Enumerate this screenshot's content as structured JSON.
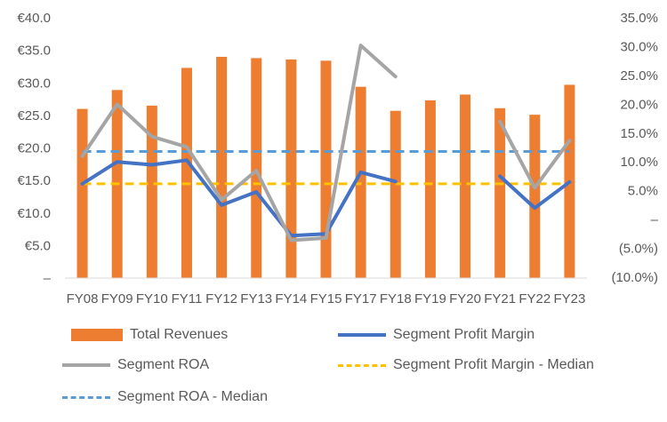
{
  "chart_data": {
    "type": "bar",
    "categories": [
      "FY08",
      "FY09",
      "FY10",
      "FY11",
      "FY12",
      "FY13",
      "FY14",
      "FY15",
      "FY17",
      "FY18",
      "FY19",
      "FY20",
      "FY21",
      "FY22",
      "FY23"
    ],
    "series": [
      {
        "name": "Total Revenues",
        "kind": "bar",
        "axis": "left",
        "color": "#ED7D31",
        "values": [
          26.0,
          28.9,
          26.5,
          32.3,
          34.0,
          33.8,
          33.6,
          33.4,
          29.4,
          25.7,
          27.3,
          28.2,
          26.1,
          25.1,
          29.7
        ]
      },
      {
        "name": "Segment Profit Margin",
        "kind": "line",
        "axis": "right",
        "color": "#4472C4",
        "values": [
          0.062,
          0.1,
          0.095,
          0.103,
          0.025,
          0.048,
          -0.028,
          -0.025,
          0.082,
          0.066,
          null,
          null,
          0.075,
          0.02,
          0.065
        ]
      },
      {
        "name": "Segment ROA",
        "kind": "line",
        "axis": "right",
        "color": "#A5A5A5",
        "values": [
          0.11,
          0.2,
          0.144,
          0.126,
          0.034,
          0.085,
          -0.036,
          -0.032,
          0.302,
          0.248,
          null,
          null,
          0.17,
          0.055,
          0.137
        ]
      },
      {
        "name": "Segment Profit Margin - Median",
        "kind": "hline",
        "axis": "right",
        "color": "#FFC000",
        "value": 0.062
      },
      {
        "name": "Segment ROA - Median",
        "kind": "hline",
        "axis": "right",
        "color": "#5B9BD5",
        "value": 0.118
      }
    ],
    "y_left": {
      "min": 0,
      "max": 40,
      "ticks": [
        "–",
        "€5.0",
        "€10.0",
        "€15.0",
        "€20.0",
        "€25.0",
        "€30.0",
        "€35.0",
        "€40.0"
      ]
    },
    "y_right": {
      "min": -0.1,
      "max": 0.35,
      "ticks": [
        "(10.0%)",
        "(5.0%)",
        "–",
        "5.0%",
        "10.0%",
        "15.0%",
        "20.0%",
        "25.0%",
        "30.0%",
        "35.0%"
      ]
    },
    "grid": false,
    "legend_position": "bottom"
  }
}
